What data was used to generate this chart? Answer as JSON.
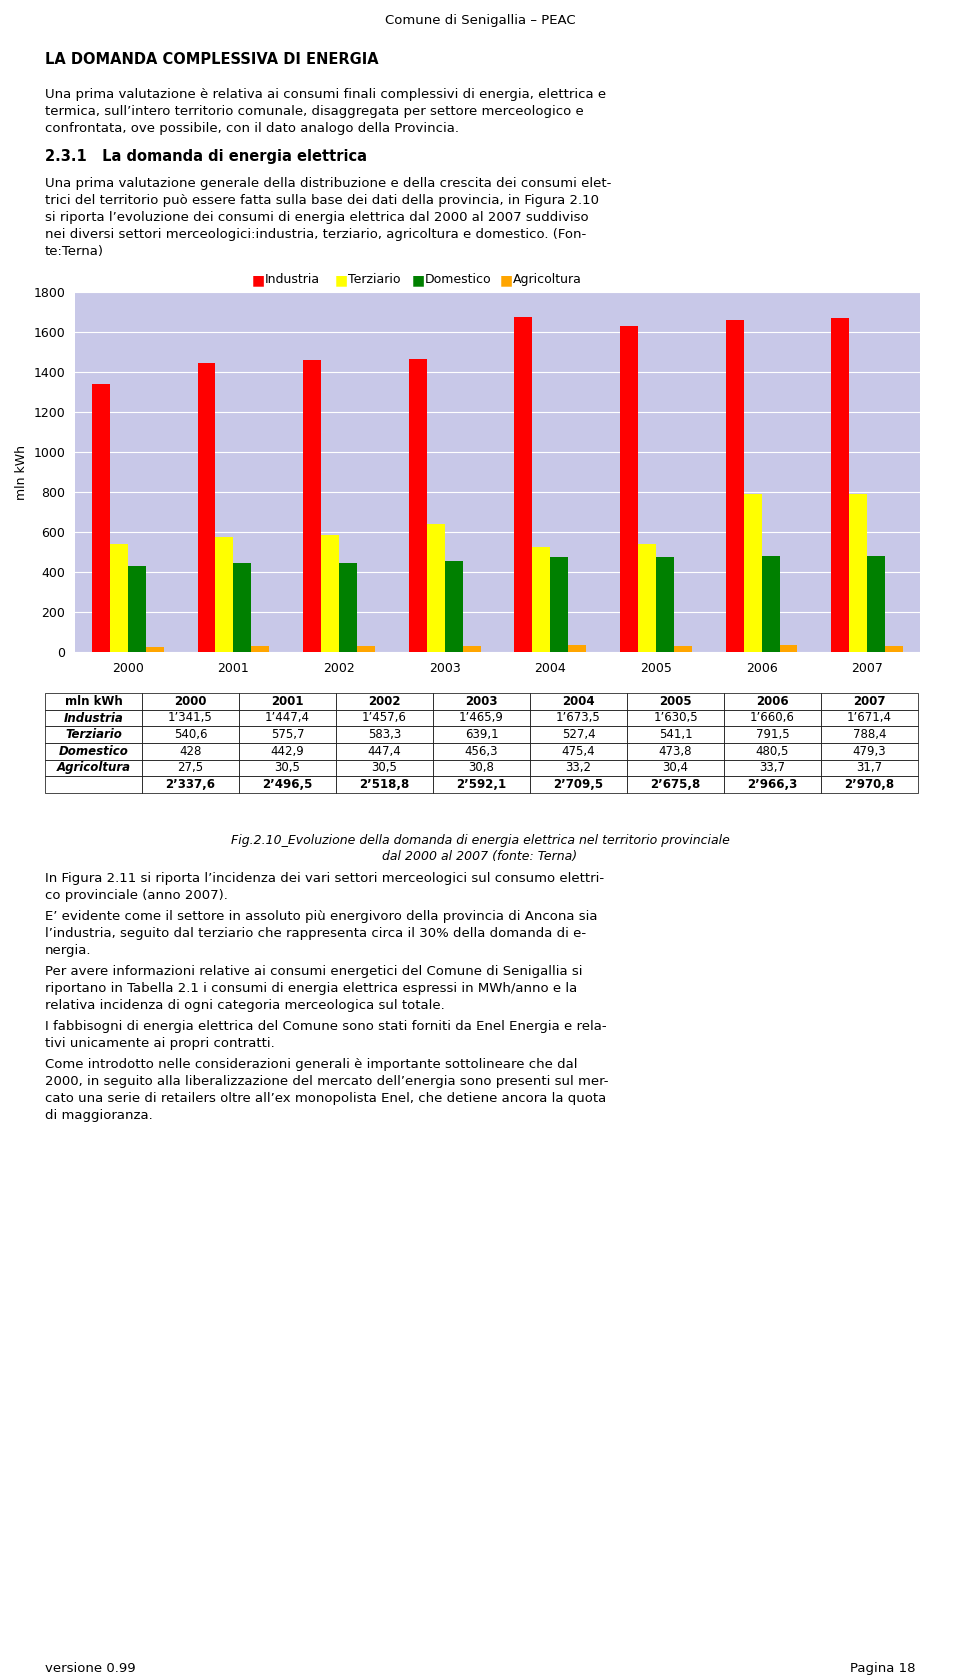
{
  "header": "Comune di Senigallia – PEAC",
  "title_bold": "LA DOMANDA COMPLESSIVA DI ENERGIA",
  "years": [
    2000,
    2001,
    2002,
    2003,
    2004,
    2005,
    2006,
    2007
  ],
  "industria": [
    1341.5,
    1447.4,
    1457.6,
    1465.9,
    1673.5,
    1630.5,
    1660.6,
    1671.4
  ],
  "terziario": [
    540.6,
    575.7,
    583.3,
    639.1,
    527.4,
    541.1,
    791.5,
    788.4
  ],
  "domestico": [
    428,
    442.9,
    447.4,
    456.3,
    475.4,
    473.8,
    480.5,
    479.3
  ],
  "agricoltura": [
    27.5,
    30.5,
    30.5,
    30.8,
    33.2,
    30.4,
    33.7,
    31.7
  ],
  "color_industria": "#FF0000",
  "color_terziario": "#FFFF00",
  "color_domestico": "#008000",
  "color_agricoltura": "#FFA500",
  "chart_bg": "#C8C8E8",
  "ylabel": "mln kWh",
  "ylim": [
    0,
    1800
  ],
  "yticks": [
    0,
    200,
    400,
    600,
    800,
    1000,
    1200,
    1400,
    1600,
    1800
  ],
  "legend_labels": [
    "Industria",
    "Terziario",
    "Domestico",
    "Agricoltura"
  ],
  "fig_caption_line1": "Fig.2.10_Evoluzione della domanda di energia elettrica nel territorio provinciale",
  "fig_caption_line2": "dal 2000 al 2007 (fonte: Terna)",
  "table_row1_label": "Industria",
  "table_row1": [
    "1’341,5",
    "1’447,4",
    "1’457,6",
    "1’465,9",
    "1’673,5",
    "1’630,5",
    "1’660,6",
    "1’671,4"
  ],
  "table_row2_label": "Terziario",
  "table_row2": [
    "540,6",
    "575,7",
    "583,3",
    "639,1",
    "527,4",
    "541,1",
    "791,5",
    "788,4"
  ],
  "table_row3_label": "Domestico",
  "table_row3": [
    "428",
    "442,9",
    "447,4",
    "456,3",
    "475,4",
    "473,8",
    "480,5",
    "479,3"
  ],
  "table_row4_label": "Agricoltura",
  "table_row4": [
    "27,5",
    "30,5",
    "30,5",
    "30,8",
    "33,2",
    "30,4",
    "33,7",
    "31,7"
  ],
  "table_total": [
    "2’337,6",
    "2’496,5",
    "2’518,8",
    "2’592,1",
    "2’709,5",
    "2’675,8",
    "2’966,3",
    "2’970,8"
  ],
  "footer_left": "versione 0.99",
  "footer_right": "Pagina 18",
  "background_color": "#FFFFFF",
  "intro_lines": [
    "Una prima valutazione è relativa ai consumi finali complessivi di energia, elettrica e",
    "termica, sull’intero territorio comunale, disaggregata per settore merceologico e",
    "confrontata, ove possibile, con il dato analogo della Provincia."
  ],
  "section_title": "2.3.1   La domanda di energia elettrica",
  "section_lines": [
    "Una prima valutazione generale della distribuzione e della crescita dei consumi elet-",
    "trici del territorio può essere fatta sulla base dei dati della provincia, in Figura 2.10",
    "si riporta l’evoluzione dei consumi di energia elettrica dal 2000 al 2007 suddiviso",
    "nei diversi settori merceologici:industria, terziario, agricoltura e domestico. (Fon-",
    "te:Terna)"
  ],
  "bottom_paragraphs": [
    [
      "In Figura 2.11 si riporta l’incidenza dei vari settori merceologici sul consumo elettri-",
      "co provinciale (anno 2007)."
    ],
    [
      "E’ evidente come il settore in assoluto più energivoro della provincia di Ancona sia",
      "l’industria, seguito dal terziario che rappresenta circa il 30% della domanda di e-",
      "nergia."
    ],
    [
      "Per avere informazioni relative ai consumi energetici del Comune di Senigallia si",
      "riportano in Tabella 2.1 i consumi di energia elettrica espressi in MWh/anno e la",
      "relativa incidenza di ogni categoria merceologica sul totale."
    ],
    [
      "I fabbisogni di energia elettrica del Comune sono stati forniti da Enel Energia e rela-",
      "tivi unicamente ai propri contratti."
    ],
    [
      "Come introdotto nelle considerazioni generali è importante sottolineare che dal",
      "2000, in seguito alla liberalizzazione del mercato dell’energia sono presenti sul mer-",
      "cato una serie di retailers oltre all’ex monopolista Enel, che detiene ancora la quota",
      "di maggioranza."
    ]
  ]
}
